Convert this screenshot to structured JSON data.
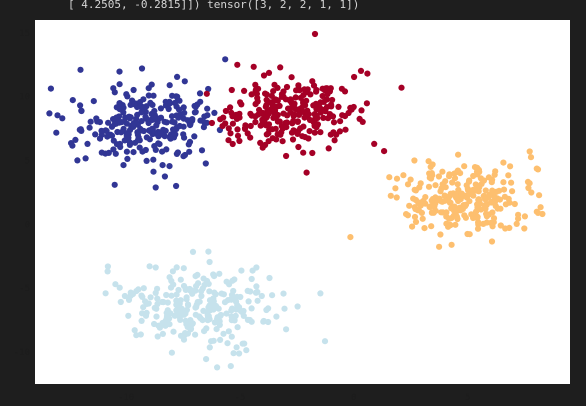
{
  "output": {
    "text": "[ 4.2505, -0.2815]]) tensor([3, 2, 2, 1, 1])"
  },
  "chart_data": {
    "type": "scatter",
    "title": "",
    "xlabel": "",
    "ylabel": "",
    "xlim": [
      -14,
      9.5
    ],
    "ylim": [
      -12.5,
      16
    ],
    "xticks": [
      -10,
      -5,
      0,
      5
    ],
    "yticks": [
      -10,
      -5,
      0,
      5,
      10,
      15
    ],
    "grid": false,
    "legend": "none",
    "colors": [
      "#313695",
      "#a50026",
      "#fdbf6f",
      "#c6e2ec"
    ],
    "clusters": [
      {
        "label": 0,
        "center": [
          -9.0,
          7.8
        ],
        "std": [
          1.6,
          1.5
        ],
        "n": 250,
        "color": "#313695"
      },
      {
        "label": 1,
        "center": [
          -2.7,
          8.8
        ],
        "std": [
          1.6,
          1.45
        ],
        "n": 250,
        "color": "#a50026"
      },
      {
        "label": 2,
        "center": [
          4.9,
          2.1
        ],
        "std": [
          1.6,
          1.4
        ],
        "n": 250,
        "color": "#fdbf6f"
      },
      {
        "label": 3,
        "center": [
          -6.7,
          -6.5
        ],
        "std": [
          1.6,
          1.5
        ],
        "n": 250,
        "color": "#c6e2ec"
      }
    ],
    "outliers": [
      {
        "x": -12.0,
        "y": 12.1,
        "label": 0
      },
      {
        "x": -9.3,
        "y": 12.2,
        "label": 0
      },
      {
        "x": -10.5,
        "y": 3.1,
        "label": 0
      },
      {
        "x": -7.8,
        "y": 3.0,
        "label": 0
      },
      {
        "x": -12.8,
        "y": 8.3,
        "label": 0
      },
      {
        "x": -1.7,
        "y": 14.9,
        "label": 1
      },
      {
        "x": 2.1,
        "y": 10.7,
        "label": 1
      },
      {
        "x": 0.6,
        "y": 11.8,
        "label": 1
      },
      {
        "x": 0.9,
        "y": 6.3,
        "label": 1
      },
      {
        "x": -4.0,
        "y": 6.0,
        "label": 1
      },
      {
        "x": 2.5,
        "y": 3.5,
        "label": 2
      },
      {
        "x": 8.1,
        "y": 0.9,
        "label": 2
      },
      {
        "x": 2.3,
        "y": 0.8,
        "label": 2
      },
      {
        "x": 4.3,
        "y": -1.6,
        "label": 2
      },
      {
        "x": -10.8,
        "y": -3.3,
        "label": 3
      },
      {
        "x": -10.9,
        "y": -5.4,
        "label": 3
      },
      {
        "x": -6.0,
        "y": -11.2,
        "label": 3
      },
      {
        "x": -5.4,
        "y": -11.1,
        "label": 3
      },
      {
        "x": -3.7,
        "y": -4.2,
        "label": 3
      }
    ]
  }
}
